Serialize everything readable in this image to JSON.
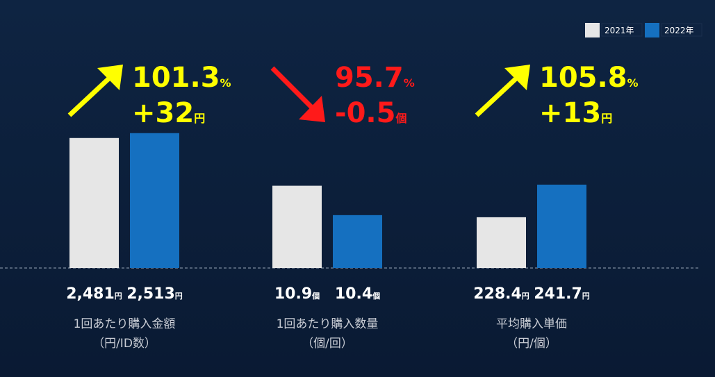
{
  "legend": [
    {
      "name": "2021年",
      "color": "#e6e6e6"
    },
    {
      "name": "2022年",
      "color": "#1570c0"
    }
  ],
  "chart_data": [
    {
      "type": "bar",
      "title": "1回あたり購入金額",
      "subtitle": "（円/ID数）",
      "values": [
        2481,
        2513
      ],
      "value_labels": [
        "2,481",
        "2,513"
      ],
      "unit": "円",
      "ylim": [
        1630,
        2630
      ],
      "change": {
        "ratio": 101.3,
        "ratio_unit": "%",
        "diff": {
          "value": 32,
          "label": "+32"
        },
        "diff_unit": "円",
        "direction": "up",
        "color": "#ffff00"
      }
    },
    {
      "type": "bar",
      "title": "1回あたり購入数量",
      "subtitle": "（個/回）",
      "values": [
        10.9,
        10.4
      ],
      "unit": "個",
      "ylim": [
        9.5,
        12.1
      ],
      "change": {
        "ratio": 95.7,
        "ratio_unit": "%",
        "diff": -0.5,
        "diff_unit": "個",
        "direction": "down",
        "color": "#ff1a1a"
      }
    },
    {
      "type": "bar",
      "title": "平均購入単価",
      "subtitle": "（円/個）",
      "values": [
        228.4,
        241.7
      ],
      "unit": "円",
      "ylim": [
        207.7,
        270
      ],
      "change": {
        "ratio": 105.8,
        "ratio_unit": "%",
        "diff": {
          "value": 13,
          "label": "+13"
        },
        "diff_unit": "円",
        "direction": "up",
        "color": "#ffff00"
      }
    }
  ]
}
